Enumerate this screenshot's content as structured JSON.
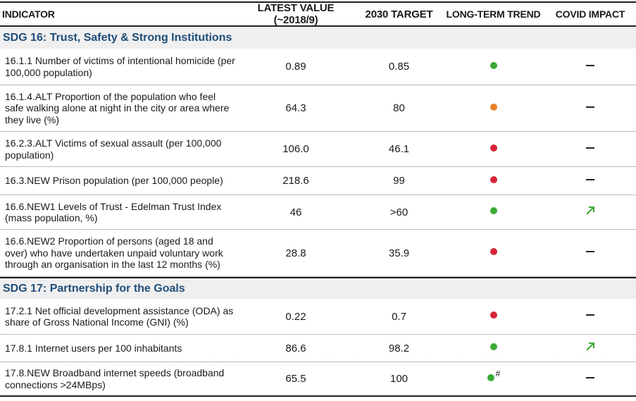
{
  "header": {
    "columns": [
      "INDICATOR",
      "LATEST VALUE (~2018/9)",
      "2030 TARGET",
      "LONG-TERM TREND",
      "COVID IMPACT"
    ]
  },
  "sections": [
    {
      "title": "SDG 16: Trust, Safety & Strong Institutions",
      "rows": [
        {
          "indicator": "16.1.1 Number of victims of intentional homicide (per 100,000 population)",
          "latest": "0.89",
          "target": "0.85",
          "trend": "#3aaa35",
          "covid": "none"
        },
        {
          "indicator": "16.1.4.ALT Proportion of the population who feel safe walking alone at night in the city or area where they live (%)",
          "latest": "64.3",
          "target": "80",
          "trend": "#e8822a",
          "covid": "none"
        },
        {
          "indicator": "16.2.3.ALT Victims of sexual assault (per 100,000 population)",
          "latest": "106.0",
          "target": "46.1",
          "trend": "#d72638",
          "covid": "none"
        },
        {
          "indicator": "16.3.NEW Prison population (per 100,000 people)",
          "latest": "218.6",
          "target": "99",
          "trend": "#d72638",
          "covid": "none"
        },
        {
          "indicator": "16.6.NEW1 Levels of Trust - Edelman Trust Index (mass population, %)",
          "latest": "46",
          "target": ">60",
          "trend": "#3aaa35",
          "covid": "up"
        },
        {
          "indicator": "16.6.NEW2  Proportion of persons (aged 18 and over) who have undertaken unpaid voluntary work through an organisation in the last 12 months (%)",
          "latest": "28.8",
          "target": "35.9",
          "trend": "#d72638",
          "covid": "none"
        }
      ]
    },
    {
      "title": "SDG 17: Partnership for the Goals",
      "rows": [
        {
          "indicator": "17.2.1 Net official development assistance (ODA) as share of Gross National Income (GNI) (%)",
          "latest": "0.22",
          "target": "0.7",
          "trend": "#d72638",
          "covid": "none"
        },
        {
          "indicator": "17.8.1 Internet users per 100 inhabitants",
          "latest": "86.6",
          "target": "98.2",
          "trend": "#3aaa35",
          "covid": "up"
        },
        {
          "indicator": "17.8.NEW Broadband internet speeds (broadband connections >24MBps)",
          "latest": "65.5",
          "target": "100",
          "trend": "#3aaa35",
          "trend_note": "#",
          "covid": "none"
        }
      ]
    }
  ]
}
